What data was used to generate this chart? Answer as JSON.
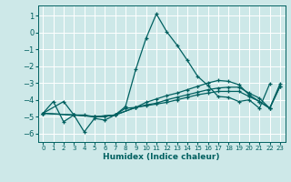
{
  "title": "",
  "xlabel": "Humidex (Indice chaleur)",
  "xlim": [
    -0.5,
    23.5
  ],
  "ylim": [
    -6.5,
    1.6
  ],
  "yticks": [
    1,
    0,
    -1,
    -2,
    -3,
    -4,
    -5,
    -6
  ],
  "xticks": [
    0,
    1,
    2,
    3,
    4,
    5,
    6,
    7,
    8,
    9,
    10,
    11,
    12,
    13,
    14,
    15,
    16,
    17,
    18,
    19,
    20,
    21,
    22,
    23
  ],
  "background_color": "#cde8e8",
  "grid_color": "#ffffff",
  "line_color": "#006060",
  "lines": [
    {
      "x": [
        0,
        1,
        2,
        3,
        4,
        5,
        6,
        7,
        8,
        9,
        10,
        11,
        12,
        13,
        14,
        15,
        16,
        17,
        18,
        19,
        20,
        21,
        22
      ],
      "y": [
        -4.8,
        -4.1,
        -5.3,
        -4.9,
        -5.9,
        -5.1,
        -5.2,
        -4.9,
        -4.4,
        -2.2,
        -0.35,
        1.1,
        0.05,
        -0.75,
        -1.65,
        -2.6,
        -3.15,
        -3.8,
        -3.85,
        -4.1,
        -4.0,
        -4.5,
        -3.05
      ]
    },
    {
      "x": [
        0,
        2,
        3,
        4,
        5,
        6,
        7,
        8,
        9,
        10,
        11,
        12,
        13,
        14,
        15,
        16,
        17,
        18,
        19,
        20,
        21,
        22,
        23
      ],
      "y": [
        -4.8,
        -4.1,
        -4.9,
        -4.9,
        -5.0,
        -5.0,
        -4.9,
        -4.5,
        -4.45,
        -4.35,
        -4.25,
        -4.15,
        -4.0,
        -3.85,
        -3.7,
        -3.6,
        -3.5,
        -3.5,
        -3.5,
        -3.8,
        -4.1,
        -4.5,
        -3.05
      ]
    },
    {
      "x": [
        0,
        3,
        5,
        7,
        9,
        10,
        11,
        12,
        13,
        14,
        15,
        16,
        17,
        18,
        19,
        20,
        21,
        22,
        23
      ],
      "y": [
        -4.8,
        -4.9,
        -5.0,
        -4.9,
        -4.45,
        -4.3,
        -4.2,
        -4.0,
        -3.85,
        -3.7,
        -3.55,
        -3.4,
        -3.3,
        -3.25,
        -3.25,
        -3.6,
        -3.9,
        -4.5,
        -3.2
      ]
    },
    {
      "x": [
        0,
        3,
        5,
        7,
        9,
        10,
        11,
        12,
        13,
        14,
        15,
        16,
        17,
        18,
        19,
        20,
        21,
        22,
        23
      ],
      "y": [
        -4.8,
        -4.9,
        -5.0,
        -4.9,
        -4.45,
        -4.15,
        -3.95,
        -3.75,
        -3.6,
        -3.4,
        -3.2,
        -3.0,
        -2.85,
        -2.9,
        -3.1,
        -3.7,
        -4.1,
        -4.5,
        -3.2
      ]
    }
  ]
}
